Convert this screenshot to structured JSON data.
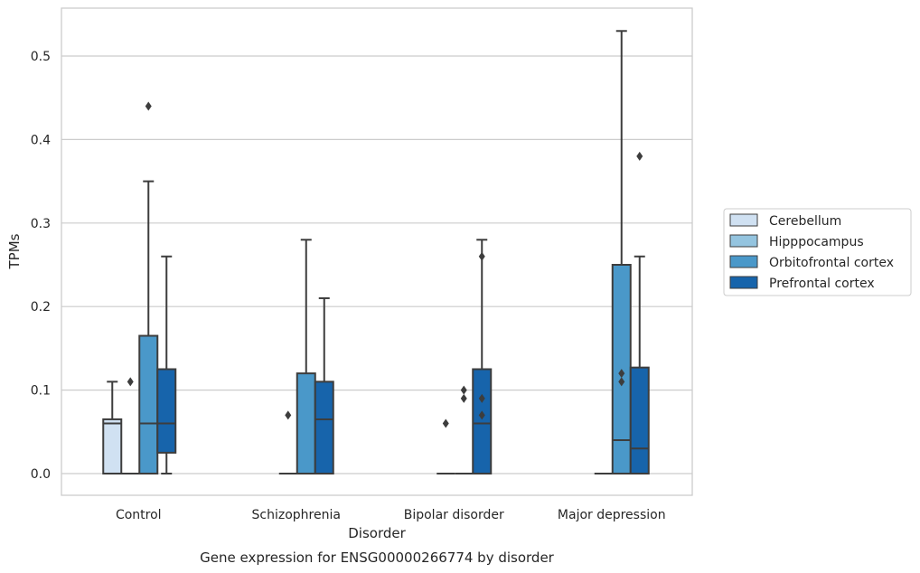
{
  "chart_data": {
    "type": "box",
    "caption": "Gene expression for ENSG00000266774 by disorder",
    "xlabel": "Disorder",
    "ylabel": "TPMs",
    "ylim": [
      -0.025,
      0.557
    ],
    "yticks": [
      0.0,
      0.1,
      0.2,
      0.3,
      0.4,
      0.5
    ],
    "ytick_labels": [
      "0.0",
      "0.1",
      "0.2",
      "0.3",
      "0.4",
      "0.5"
    ],
    "grid": "horizontal",
    "legend_position": "right",
    "categories": [
      "Control",
      "Schizophrenia",
      "Bipolar disorder",
      "Major depression"
    ],
    "series": [
      {
        "name": "Cerebellum",
        "color": "#d0e1f2",
        "boxes": [
          {
            "min": 0.0,
            "q1": 0.0,
            "median": 0.06,
            "q3": 0.065,
            "max": 0.11,
            "outliers": []
          },
          null,
          null,
          null
        ]
      },
      {
        "name": "Hipppocampus",
        "color": "#94c4df",
        "boxes": [
          {
            "min": 0.0,
            "q1": 0.0,
            "median": 0.0,
            "q3": 0.0,
            "max": 0.0,
            "outliers": [
              0.11
            ]
          },
          {
            "min": 0.0,
            "q1": 0.0,
            "median": 0.0,
            "q3": 0.0,
            "max": 0.0,
            "outliers": [
              0.07
            ]
          },
          {
            "min": 0.0,
            "q1": 0.0,
            "median": 0.0,
            "q3": 0.0,
            "max": 0.0,
            "outliers": [
              0.06
            ]
          },
          {
            "min": 0.0,
            "q1": 0.0,
            "median": 0.0,
            "q3": 0.0,
            "max": 0.0,
            "outliers": []
          }
        ]
      },
      {
        "name": "Orbitofrontal cortex",
        "color": "#4a98c9",
        "boxes": [
          {
            "min": 0.0,
            "q1": 0.0,
            "median": 0.06,
            "q3": 0.165,
            "max": 0.35,
            "outliers": [
              0.44
            ]
          },
          {
            "min": 0.0,
            "q1": 0.0,
            "median": 0.0,
            "q3": 0.12,
            "max": 0.28,
            "outliers": []
          },
          {
            "min": 0.0,
            "q1": 0.0,
            "median": 0.0,
            "q3": 0.0,
            "max": 0.0,
            "outliers": [
              0.09,
              0.1
            ]
          },
          {
            "min": 0.0,
            "q1": 0.0,
            "median": 0.04,
            "q3": 0.25,
            "max": 0.53,
            "outliers": [
              0.11,
              0.12
            ]
          }
        ]
      },
      {
        "name": "Prefrontal cortex",
        "color": "#1764ab",
        "boxes": [
          {
            "min": 0.0,
            "q1": 0.025,
            "median": 0.06,
            "q3": 0.125,
            "max": 0.26,
            "outliers": []
          },
          {
            "min": 0.0,
            "q1": 0.0,
            "median": 0.065,
            "q3": 0.11,
            "max": 0.21,
            "outliers": []
          },
          {
            "min": 0.0,
            "q1": 0.0,
            "median": 0.06,
            "q3": 0.125,
            "max": 0.28,
            "outliers": [
              0.07,
              0.09,
              0.26
            ]
          },
          {
            "min": 0.0,
            "q1": 0.0,
            "median": 0.03,
            "q3": 0.127,
            "max": 0.26,
            "outliers": [
              0.38
            ]
          }
        ]
      }
    ]
  }
}
